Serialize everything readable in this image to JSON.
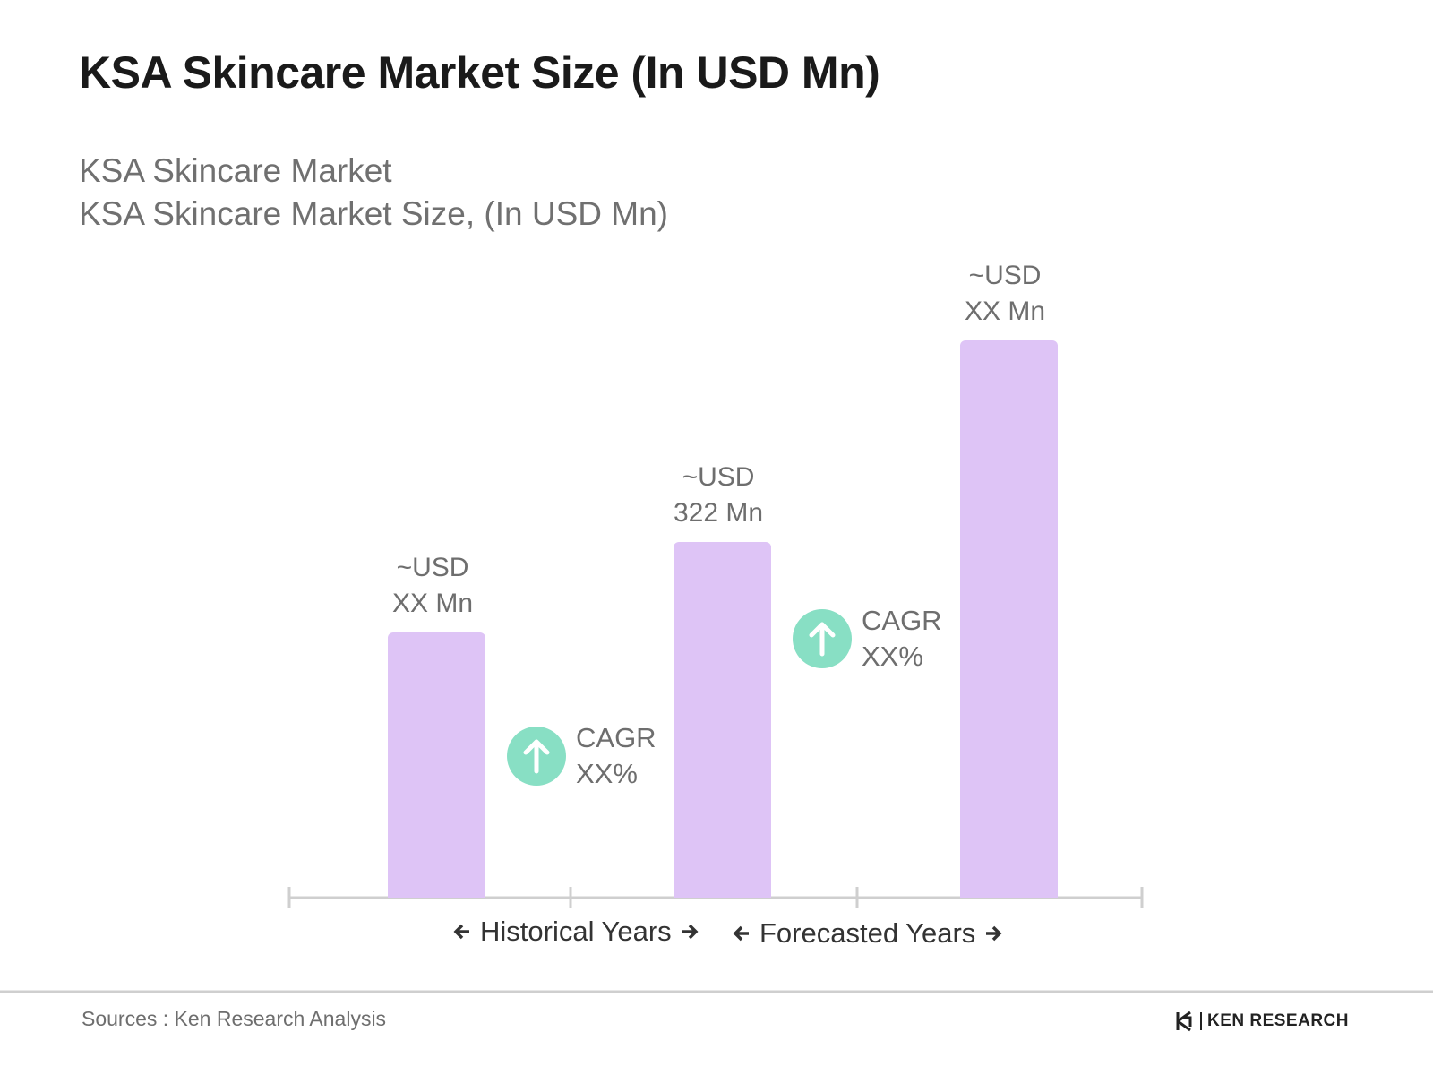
{
  "chart_data": {
    "type": "bar",
    "title": "KSA Skincare Market Size (In USD Mn)",
    "subtitle": [
      "KSA Skincare Market",
      "KSA Skincare Market Size, (In USD Mn)"
    ],
    "categories": [
      null,
      null,
      null
    ],
    "values": [
      240,
      322,
      505
    ],
    "value_labels": [
      "~USD\nXX Mn",
      "~USD\n322 Mn",
      "~USD\nXX Mn"
    ],
    "color": "#dec4f6",
    "annotations": [
      "CAGR\nXX%",
      "CAGR\nXX%"
    ],
    "annotation_color": "#88dfc4",
    "periods": [
      "Historical Years",
      "Forecasted Years"
    ],
    "source": "Sources : Ken Research Analysis",
    "brand": "KEN RESEARCH"
  }
}
